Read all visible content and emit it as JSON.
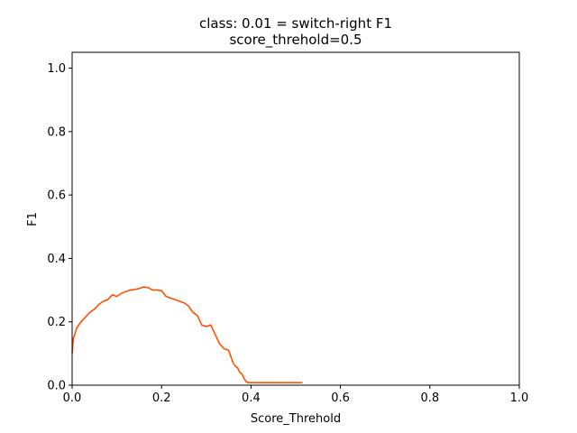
{
  "chart_data": {
    "type": "line",
    "title": "class: 0.01 = switch-right F1",
    "subtitle": "score_threhold=0.5",
    "xlabel": "Score_Threhold",
    "ylabel": "F1",
    "xlim": [
      0.0,
      1.0
    ],
    "ylim": [
      0.0,
      1.05
    ],
    "xticks": [
      0.0,
      0.2,
      0.4,
      0.6,
      0.8,
      1.0
    ],
    "xtick_labels": [
      "0.0",
      "0.2",
      "0.4",
      "0.6",
      "0.8",
      "1.0"
    ],
    "yticks": [
      0.0,
      0.2,
      0.4,
      0.6,
      0.8,
      1.0
    ],
    "ytick_labels": [
      "0.0",
      "0.2",
      "0.4",
      "0.6",
      "0.8",
      "1.0"
    ],
    "grid": false,
    "series": [
      {
        "color": "#ff5000",
        "x": [
          0.0,
          0.003,
          0.006,
          0.01,
          0.015,
          0.02,
          0.03,
          0.04,
          0.05,
          0.06,
          0.07,
          0.08,
          0.09,
          0.1,
          0.11,
          0.12,
          0.13,
          0.14,
          0.15,
          0.16,
          0.17,
          0.18,
          0.19,
          0.2,
          0.21,
          0.22,
          0.23,
          0.24,
          0.25,
          0.26,
          0.27,
          0.28,
          0.29,
          0.3,
          0.31,
          0.32,
          0.33,
          0.34,
          0.35,
          0.36,
          0.365,
          0.37,
          0.375,
          0.38,
          0.385,
          0.39,
          0.395,
          0.4,
          0.41,
          0.45,
          0.5,
          0.515
        ],
        "y": [
          0.1,
          0.15,
          0.16,
          0.18,
          0.19,
          0.2,
          0.215,
          0.23,
          0.24,
          0.255,
          0.265,
          0.27,
          0.285,
          0.28,
          0.29,
          0.295,
          0.3,
          0.302,
          0.305,
          0.31,
          0.308,
          0.3,
          0.3,
          0.298,
          0.28,
          0.275,
          0.27,
          0.265,
          0.26,
          0.25,
          0.23,
          0.22,
          0.19,
          0.185,
          0.19,
          0.16,
          0.13,
          0.115,
          0.11,
          0.07,
          0.06,
          0.055,
          0.04,
          0.035,
          0.02,
          0.01,
          0.008,
          0.008,
          0.008,
          0.008,
          0.008,
          0.008
        ]
      }
    ]
  }
}
